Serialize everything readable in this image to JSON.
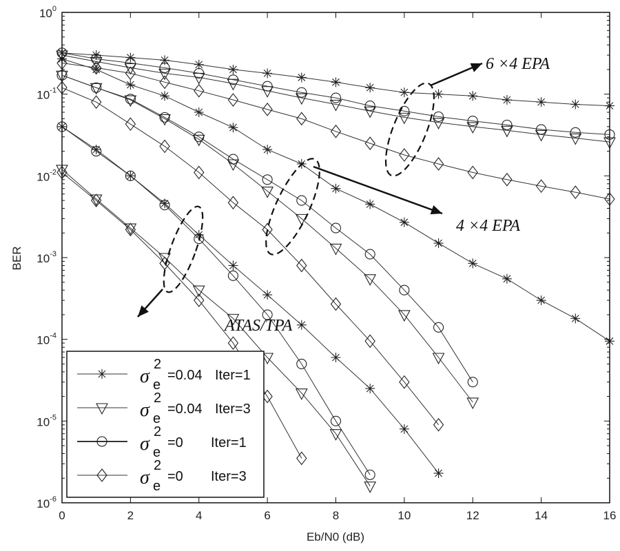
{
  "chart_data": {
    "type": "line",
    "title": "",
    "xlabel": "Eb/N0 (dB)",
    "ylabel": "BER",
    "xlim": [
      0,
      16
    ],
    "ylim": [
      1e-06,
      1
    ],
    "yscale": "log",
    "grid": false,
    "legend_placement": "bottom-left",
    "x_ticks": [
      "0",
      "2",
      "4",
      "6",
      "8",
      "10",
      "12",
      "14",
      "16"
    ],
    "y_ticks": [
      {
        "base": "10",
        "exp": "0"
      },
      {
        "base": "10",
        "exp": "-1"
      },
      {
        "base": "10",
        "exp": "-2"
      },
      {
        "base": "10",
        "exp": "-3"
      },
      {
        "base": "10",
        "exp": "-4"
      },
      {
        "base": "10",
        "exp": "-5"
      },
      {
        "base": "10",
        "exp": "-6"
      }
    ],
    "legend": [
      {
        "marker": "star",
        "sigma": "σ",
        "sub": "e",
        "sup": "2",
        "value": "=0.04",
        "iter": "Iter=1"
      },
      {
        "marker": "triangle",
        "sigma": "σ",
        "sub": "e",
        "sup": "2",
        "value": "=0.04",
        "iter": "Iter=3"
      },
      {
        "marker": "circle",
        "sigma": "σ",
        "sub": "e",
        "sup": "2",
        "value": "=0",
        "iter": "Iter=1"
      },
      {
        "marker": "diamond",
        "sigma": "σ",
        "sub": "e",
        "sup": "2",
        "value": "=0",
        "iter": "Iter=3"
      }
    ],
    "annotations": [
      "6 ×4  EPA",
      "4 ×4  EPA",
      "ATAS/TPA"
    ],
    "series": [
      {
        "group": "6x4 EPA",
        "marker": "star",
        "x": [
          0,
          1,
          2,
          3,
          4,
          5,
          6,
          7,
          8,
          9,
          10,
          11,
          12,
          13,
          14,
          15,
          16
        ],
        "y": [
          0.32,
          0.3,
          0.28,
          0.26,
          0.23,
          0.2,
          0.18,
          0.16,
          0.14,
          0.12,
          0.105,
          0.1,
          0.095,
          0.085,
          0.08,
          0.075,
          0.072
        ]
      },
      {
        "group": "6x4 EPA",
        "marker": "circle",
        "x": [
          0,
          1,
          2,
          3,
          4,
          5,
          6,
          7,
          8,
          9,
          10,
          11,
          12,
          13,
          14,
          15,
          16
        ],
        "y": [
          0.32,
          0.27,
          0.24,
          0.21,
          0.18,
          0.15,
          0.125,
          0.105,
          0.09,
          0.072,
          0.062,
          0.053,
          0.047,
          0.042,
          0.037,
          0.034,
          0.032
        ]
      },
      {
        "group": "6x4 EPA",
        "marker": "triangle",
        "x": [
          0,
          1,
          2,
          3,
          4,
          5,
          6,
          7,
          8,
          9,
          10,
          11,
          12,
          13,
          14,
          15,
          16
        ],
        "y": [
          0.3,
          0.25,
          0.21,
          0.18,
          0.16,
          0.135,
          0.11,
          0.09,
          0.075,
          0.062,
          0.052,
          0.045,
          0.04,
          0.036,
          0.032,
          0.029,
          0.026
        ]
      },
      {
        "group": "6x4 EPA",
        "marker": "diamond",
        "x": [
          0,
          1,
          2,
          3,
          4,
          5,
          6,
          7,
          8,
          9,
          10,
          11,
          12,
          13,
          14,
          15,
          16
        ],
        "y": [
          0.24,
          0.21,
          0.18,
          0.14,
          0.11,
          0.085,
          0.065,
          0.05,
          0.035,
          0.025,
          0.018,
          0.014,
          0.011,
          0.009,
          0.0075,
          0.0063,
          0.0052
        ]
      },
      {
        "group": "4x4 EPA",
        "marker": "star",
        "x": [
          0,
          1,
          2,
          3,
          4,
          5,
          6,
          7,
          8,
          9,
          10,
          11,
          12,
          13,
          14,
          15,
          16
        ],
        "y": [
          0.27,
          0.2,
          0.13,
          0.095,
          0.06,
          0.039,
          0.021,
          0.014,
          0.007,
          0.0045,
          0.0027,
          0.0015,
          0.00085,
          0.00055,
          0.0003,
          0.00018,
          9.5e-05
        ]
      },
      {
        "group": "4x4 EPA",
        "marker": "circle",
        "x": [
          0,
          1,
          2,
          3,
          4,
          5,
          6,
          7,
          8,
          9,
          10,
          11,
          12
        ],
        "y": [
          0.17,
          0.12,
          0.087,
          0.052,
          0.03,
          0.016,
          0.009,
          0.005,
          0.0023,
          0.0011,
          0.0004,
          0.00014,
          3e-05
        ]
      },
      {
        "group": "4x4 EPA",
        "marker": "triangle",
        "x": [
          0,
          1,
          2,
          3,
          4,
          5,
          6,
          7,
          8,
          9,
          10,
          11,
          12
        ],
        "y": [
          0.17,
          0.12,
          0.085,
          0.05,
          0.028,
          0.014,
          0.0065,
          0.003,
          0.0013,
          0.00055,
          0.0002,
          6e-05,
          1.7e-05
        ]
      },
      {
        "group": "4x4 EPA",
        "marker": "diamond",
        "x": [
          0,
          1,
          2,
          3,
          4,
          5,
          6,
          7,
          8,
          9,
          10,
          11
        ],
        "y": [
          0.12,
          0.08,
          0.043,
          0.023,
          0.011,
          0.0047,
          0.0022,
          0.0008,
          0.00027,
          9.5e-05,
          3e-05,
          9e-06
        ]
      },
      {
        "group": "ATAS/TPA",
        "marker": "star",
        "x": [
          0,
          1,
          2,
          3,
          4,
          5,
          6,
          7,
          8,
          9,
          10,
          11
        ],
        "y": [
          0.04,
          0.021,
          0.01,
          0.0046,
          0.0019,
          0.0008,
          0.00035,
          0.00015,
          6e-05,
          2.5e-05,
          8e-06,
          2.3e-06
        ]
      },
      {
        "group": "ATAS/TPA",
        "marker": "circle",
        "x": [
          0,
          1,
          2,
          3,
          4,
          5,
          6,
          7,
          8,
          9
        ],
        "y": [
          0.04,
          0.02,
          0.01,
          0.0044,
          0.0017,
          0.0006,
          0.0002,
          5e-05,
          1e-05,
          2.2e-06
        ]
      },
      {
        "group": "ATAS/TPA",
        "marker": "triangle",
        "x": [
          0,
          1,
          2,
          3,
          4,
          5,
          6,
          7,
          8,
          9
        ],
        "y": [
          0.012,
          0.0052,
          0.0023,
          0.001,
          0.0004,
          0.00018,
          6e-05,
          2.2e-05,
          7e-06,
          1.6e-06
        ]
      },
      {
        "group": "ATAS/TPA",
        "marker": "diamond",
        "x": [
          0,
          1,
          2,
          3,
          4,
          5,
          6,
          7
        ],
        "y": [
          0.011,
          0.005,
          0.0022,
          0.00085,
          0.0003,
          9e-05,
          2e-05,
          3.5e-06
        ]
      }
    ]
  }
}
